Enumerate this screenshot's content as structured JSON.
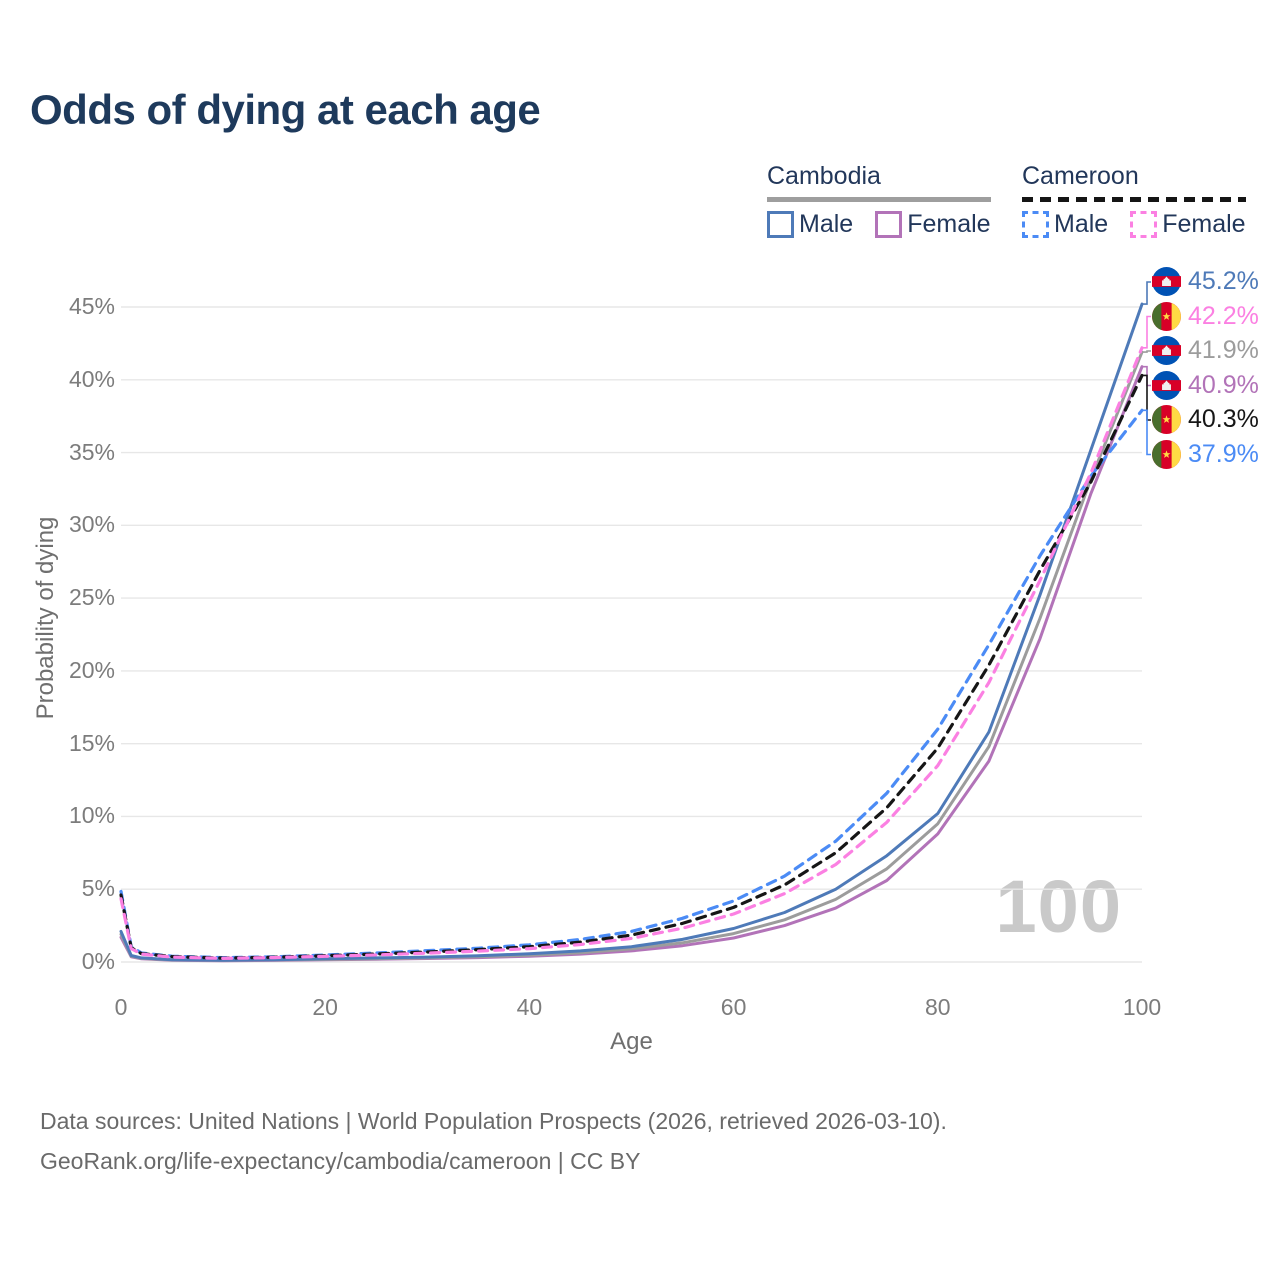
{
  "title": "Odds of dying at each age",
  "watermark": "100",
  "legend": {
    "groups": [
      {
        "country": "Cambodia",
        "line_style": "solid",
        "underline_color": "#9e9e9e",
        "items": [
          {
            "label": "Male",
            "color": "#4e7ab8"
          },
          {
            "label": "Female",
            "color": "#b273b8"
          }
        ]
      },
      {
        "country": "Cameroon",
        "line_style": "dashed",
        "underline_color": "#151515",
        "items": [
          {
            "label": "Male",
            "color": "#4b8bf5"
          },
          {
            "label": "Female",
            "color": "#fb80e2"
          }
        ]
      }
    ]
  },
  "axes": {
    "x": {
      "title": "Age",
      "range": [
        0,
        100
      ],
      "ticks": [
        {
          "v": 0,
          "label": "0"
        },
        {
          "v": 20,
          "label": "20"
        },
        {
          "v": 40,
          "label": "40"
        },
        {
          "v": 60,
          "label": "60"
        },
        {
          "v": 80,
          "label": "80"
        },
        {
          "v": 100,
          "label": "100"
        }
      ]
    },
    "y": {
      "title": "Probability of dying",
      "range": [
        0,
        45
      ],
      "unit": "%",
      "ticks": [
        {
          "v": 0,
          "label": "0%"
        },
        {
          "v": 5,
          "label": "5%"
        },
        {
          "v": 10,
          "label": "10%"
        },
        {
          "v": 15,
          "label": "15%"
        },
        {
          "v": 20,
          "label": "20%"
        },
        {
          "v": 25,
          "label": "25%"
        },
        {
          "v": 30,
          "label": "30%"
        },
        {
          "v": 35,
          "label": "35%"
        },
        {
          "v": 40,
          "label": "40%"
        }
      ]
    }
  },
  "chart_data": {
    "type": "line",
    "xlabel": "Age",
    "ylabel": "Probability of dying",
    "xlim": [
      0,
      100
    ],
    "ylim": [
      0,
      45
    ],
    "grid": "horizontal",
    "x_ages": [
      0,
      1,
      2,
      5,
      10,
      15,
      20,
      25,
      30,
      35,
      40,
      45,
      50,
      55,
      60,
      65,
      70,
      75,
      80,
      85,
      90,
      95,
      100
    ],
    "series": [
      {
        "id": "cambodia-female",
        "name": "Cambodia Female",
        "country": "Cambodia",
        "sex": "Female",
        "color": "#b273b8",
        "dashed": false,
        "end_value_pct": 40.9,
        "values": [
          1.7,
          0.36,
          0.22,
          0.12,
          0.09,
          0.11,
          0.15,
          0.19,
          0.24,
          0.3,
          0.4,
          0.54,
          0.76,
          1.12,
          1.65,
          2.5,
          3.7,
          5.6,
          8.8,
          13.8,
          22.2,
          32.2,
          40.9
        ]
      },
      {
        "id": "cambodia-both",
        "name": "Cambodia",
        "country": "Cambodia",
        "sex": "Both",
        "color": "#9c9c9c",
        "dashed": false,
        "end_value_pct": 41.9,
        "values": [
          1.9,
          0.4,
          0.25,
          0.14,
          0.11,
          0.14,
          0.18,
          0.23,
          0.28,
          0.36,
          0.47,
          0.64,
          0.9,
          1.32,
          1.95,
          2.9,
          4.3,
          6.4,
          9.5,
          14.8,
          23.6,
          33.2,
          41.9
        ]
      },
      {
        "id": "cambodia-male",
        "name": "Cambodia Male",
        "country": "Cambodia",
        "sex": "Male",
        "color": "#4e7ab8",
        "dashed": false,
        "end_value_pct": 45.2,
        "values": [
          2.1,
          0.45,
          0.28,
          0.16,
          0.12,
          0.16,
          0.22,
          0.28,
          0.34,
          0.43,
          0.56,
          0.76,
          1.05,
          1.55,
          2.3,
          3.4,
          5.0,
          7.3,
          10.2,
          15.8,
          25.2,
          35.2,
          45.2
        ]
      },
      {
        "id": "cameroon-male",
        "name": "Cameroon Male",
        "country": "Cameroon",
        "sex": "Male",
        "color": "#4b8bf5",
        "dashed": true,
        "end_value_pct": 37.9,
        "values": [
          4.85,
          1.05,
          0.62,
          0.4,
          0.3,
          0.36,
          0.48,
          0.62,
          0.78,
          0.95,
          1.18,
          1.55,
          2.1,
          3.0,
          4.2,
          5.9,
          8.3,
          11.6,
          16.0,
          21.8,
          27.9,
          33.4,
          37.9
        ]
      },
      {
        "id": "cameroon-both",
        "name": "Cameroon",
        "country": "Cameroon",
        "sex": "Both",
        "color": "#161616",
        "dashed": true,
        "end_value_pct": 40.3,
        "values": [
          4.6,
          0.98,
          0.58,
          0.37,
          0.27,
          0.33,
          0.43,
          0.55,
          0.69,
          0.85,
          1.05,
          1.37,
          1.85,
          2.65,
          3.75,
          5.3,
          7.5,
          10.6,
          14.7,
          20.4,
          26.9,
          33.0,
          40.3
        ]
      },
      {
        "id": "cameroon-female",
        "name": "Cameroon Female",
        "country": "Cameroon",
        "sex": "Female",
        "color": "#fb80e2",
        "dashed": true,
        "end_value_pct": 42.2,
        "values": [
          4.35,
          0.92,
          0.54,
          0.34,
          0.25,
          0.3,
          0.39,
          0.49,
          0.61,
          0.75,
          0.92,
          1.2,
          1.62,
          2.32,
          3.3,
          4.7,
          6.7,
          9.6,
          13.5,
          19.2,
          26.2,
          33.6,
          42.2
        ]
      }
    ]
  },
  "end_labels": [
    {
      "series_id": "cambodia-male",
      "value": "45.2%",
      "color": "#4e7ab8",
      "flag": "cambodia-flag-icon"
    },
    {
      "series_id": "cameroon-female",
      "value": "42.2%",
      "color": "#fb80e2",
      "flag": "cameroon-flag-icon"
    },
    {
      "series_id": "cambodia-both",
      "value": "41.9%",
      "color": "#9c9c9c",
      "flag": "cambodia-flag-icon"
    },
    {
      "series_id": "cambodia-female",
      "value": "40.9%",
      "color": "#b273b8",
      "flag": "cambodia-flag-icon"
    },
    {
      "series_id": "cameroon-both",
      "value": "40.3%",
      "color": "#161616",
      "flag": "cameroon-flag-icon"
    },
    {
      "series_id": "cameroon-male",
      "value": "37.9%",
      "color": "#4b8bf5",
      "flag": "cameroon-flag-icon"
    }
  ],
  "flags": {
    "cambodia": {
      "blue": "#0052b4",
      "red": "#d80027",
      "temple": "#f0f0f0"
    },
    "cameroon": {
      "green": "#496e2d",
      "red": "#d80027",
      "yellow": "#ffda44"
    }
  },
  "footer": {
    "line1": "Data sources: United Nations | World Population Prospects (2026, retrieved 2026-03-10).",
    "line2": "GeoRank.org/life-expectancy/cambodia/cameroon | CC BY"
  }
}
